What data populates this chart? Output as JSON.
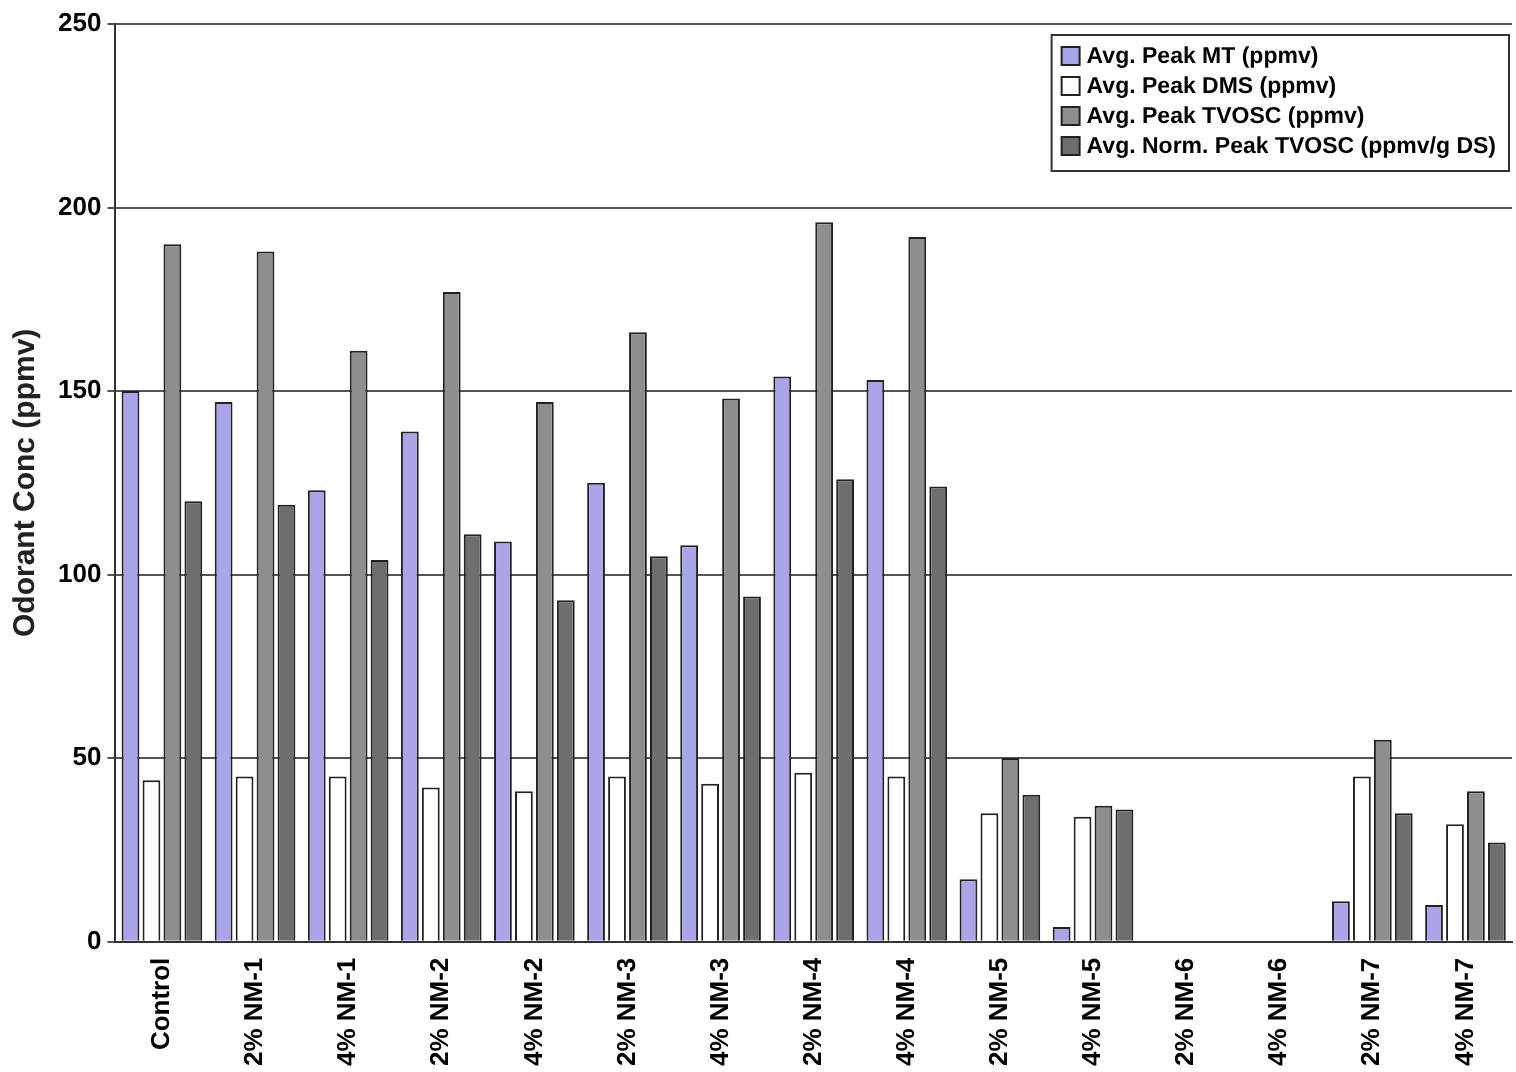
{
  "chart_data": {
    "type": "bar",
    "ylabel": "Odorant Conc (ppmv)",
    "categories": [
      "Control",
      "2% NM-1",
      "4% NM-1",
      "2% NM-2",
      "4% NM-2",
      "2% NM-3",
      "4% NM-3",
      "2% NM-4",
      "4% NM-4",
      "2% NM-5",
      "4% NM-5",
      "2% NM-6",
      "4% NM-6",
      "2% NM-7",
      "4% NM-7"
    ],
    "series": [
      {
        "name": "Avg. Peak MT (ppmv)",
        "color": "#aaa5e8",
        "values": [
          150,
          147,
          123,
          139,
          109,
          125,
          108,
          154,
          153,
          17,
          4,
          0,
          0,
          11,
          10
        ]
      },
      {
        "name": "Avg. Peak DMS (ppmv)",
        "color": "#ffffff",
        "values": [
          44,
          45,
          45,
          42,
          41,
          45,
          43,
          46,
          45,
          35,
          34,
          0,
          0,
          45,
          32
        ]
      },
      {
        "name": "Avg. Peak TVOSC (ppmv)",
        "color": "#8e8e8e",
        "values": [
          190,
          188,
          161,
          177,
          147,
          166,
          148,
          196,
          192,
          50,
          37,
          0,
          0,
          55,
          41
        ]
      },
      {
        "name": "Avg. Norm. Peak TVOSC (ppmv/g DS)",
        "color": "#6e6e6e",
        "values": [
          120,
          119,
          104,
          111,
          93,
          105,
          94,
          126,
          124,
          40,
          36,
          0,
          0,
          35,
          27
        ]
      }
    ],
    "ylim": [
      0,
      250
    ],
    "yticks": [
      0,
      50,
      100,
      150,
      200,
      250
    ],
    "grid": "y",
    "legend": "top right"
  }
}
